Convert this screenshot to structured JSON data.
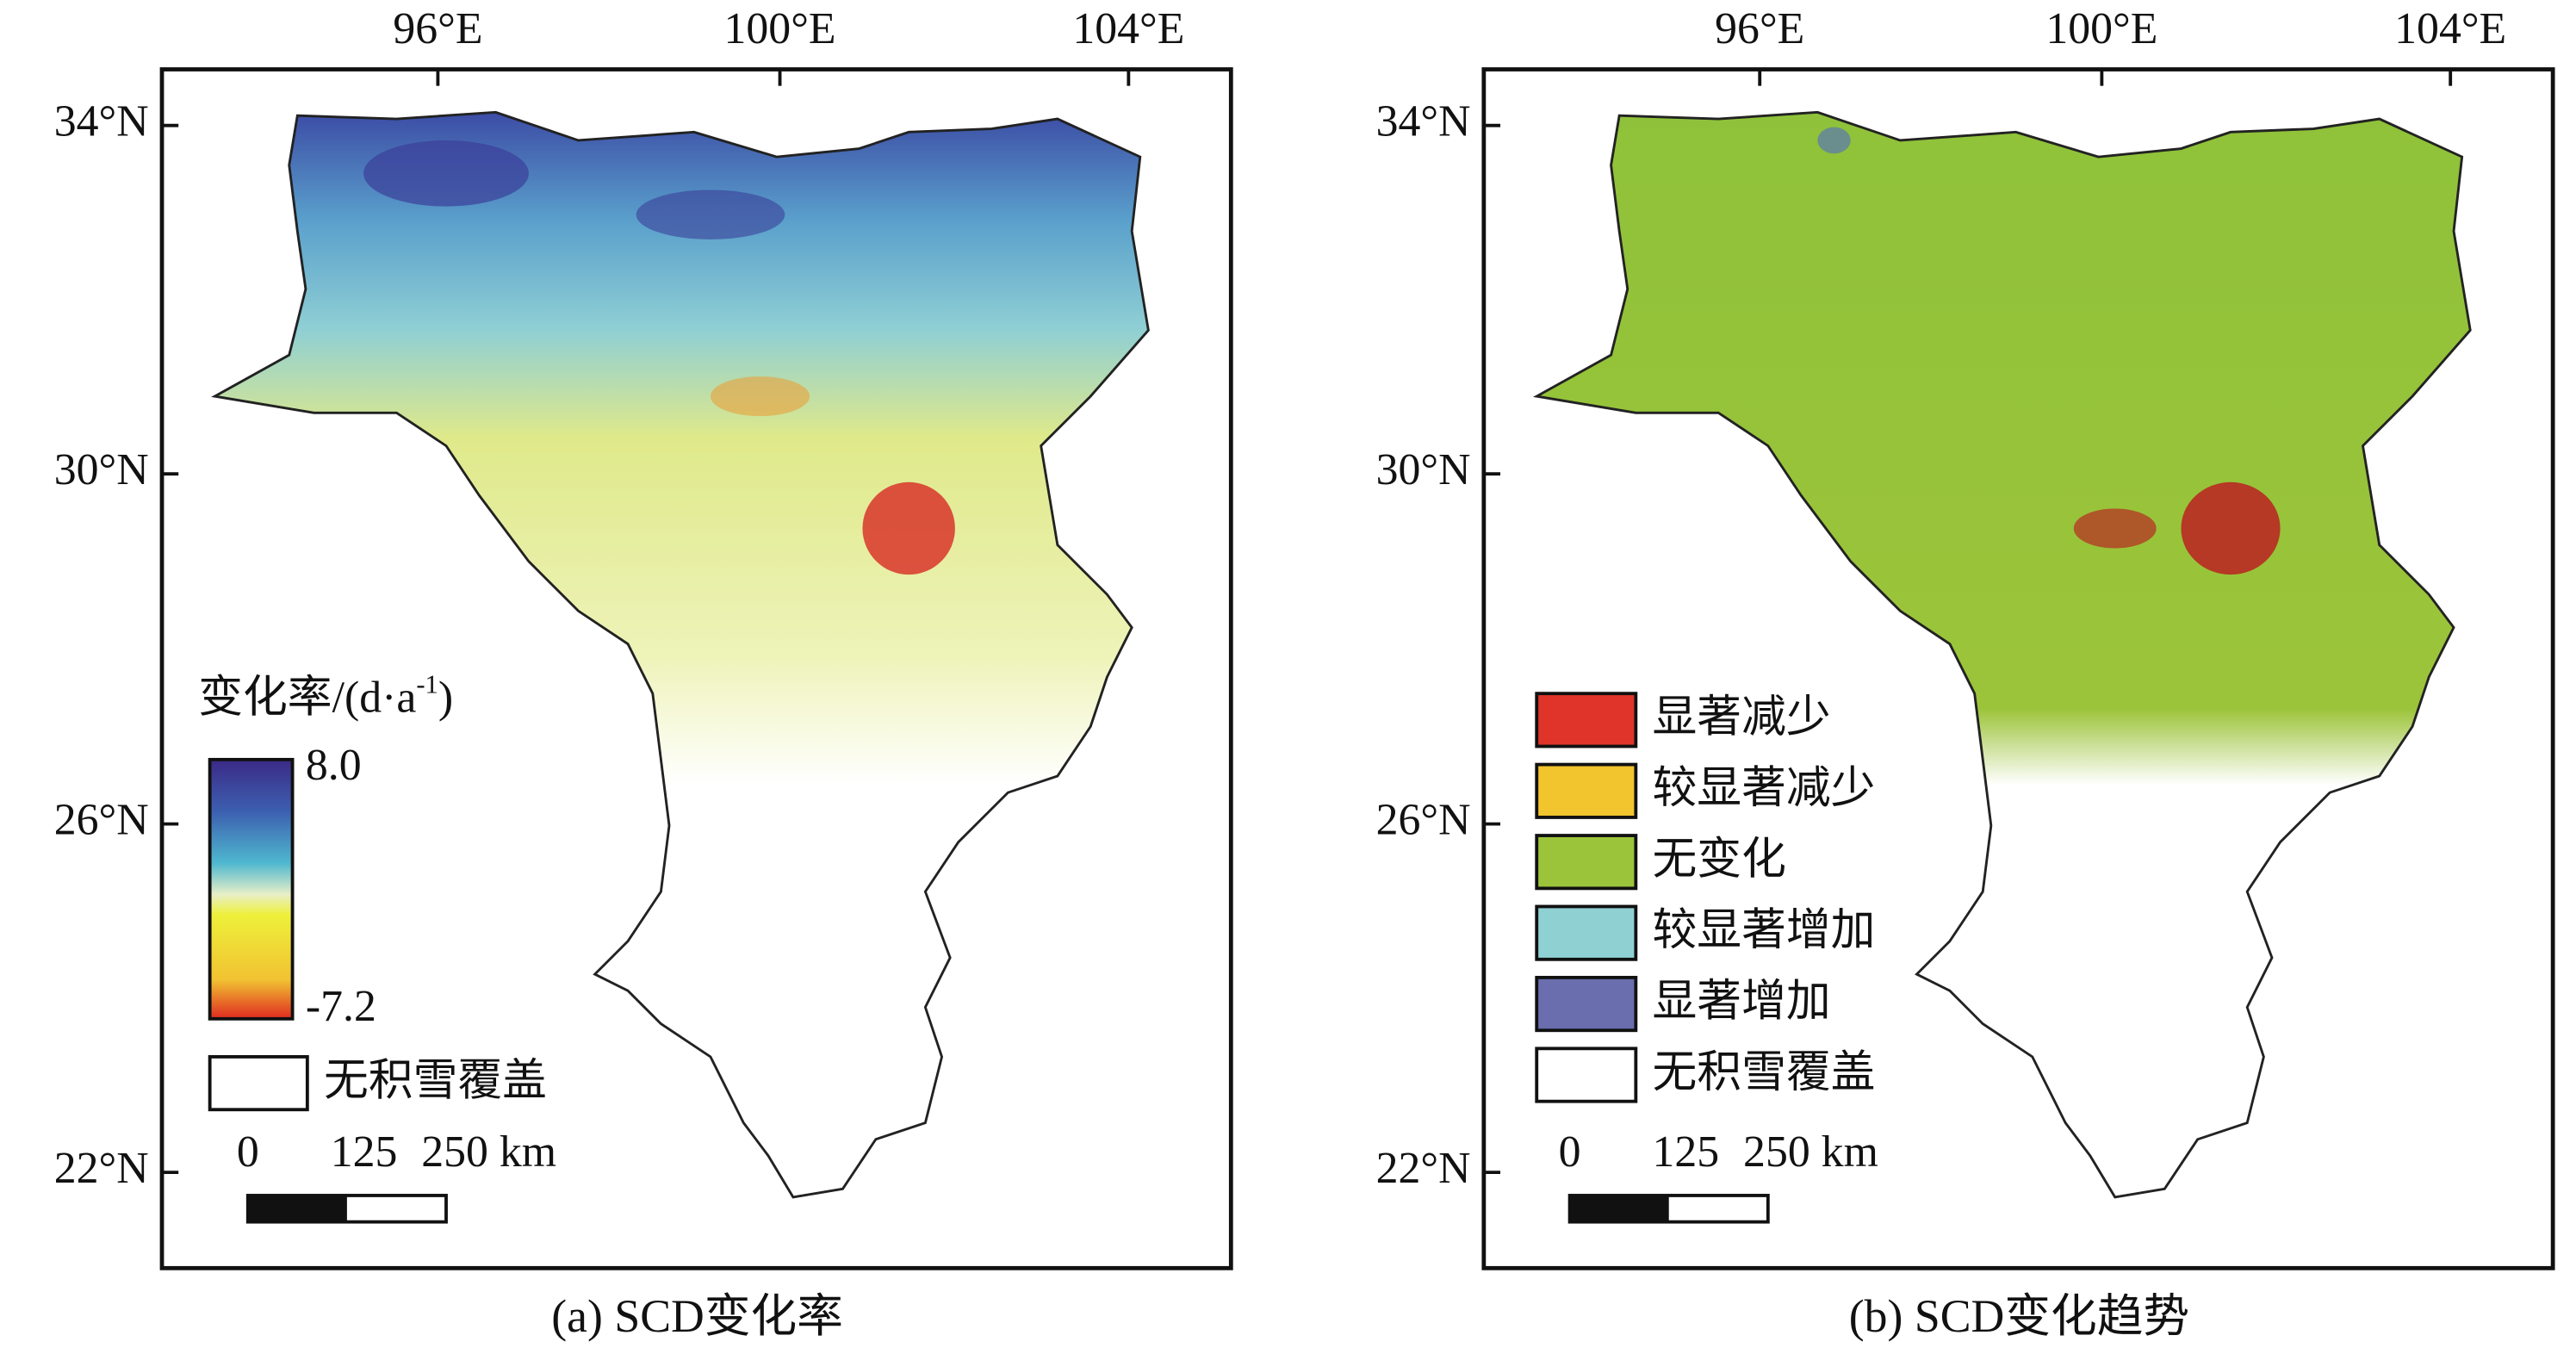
{
  "panels": [
    {
      "caption": "(a) SCD变化率",
      "lon_ticks": [
        "96°E",
        "100°E",
        "104°E"
      ],
      "lat_ticks": [
        "34°N",
        "30°N",
        "26°N",
        "22°N"
      ],
      "legend": {
        "title": "变化率/(d·a",
        "title_sup": "-1",
        "title_end": ")",
        "max": "8.0",
        "min": "-7.2",
        "no_snow": "无积雪覆盖"
      },
      "scale": [
        "0",
        "125",
        "250 km"
      ]
    },
    {
      "caption": "(b) SCD变化趋势",
      "lon_ticks": [
        "96°E",
        "100°E",
        "104°E"
      ],
      "lat_ticks": [
        "34°N",
        "30°N",
        "26°N",
        "22°N"
      ],
      "legend": {
        "items": [
          {
            "label": "显著减少",
            "color": "#e0342a"
          },
          {
            "label": "较显著减少",
            "color": "#f2c42e"
          },
          {
            "label": "无变化",
            "color": "#9cc43a"
          },
          {
            "label": "较显著增加",
            "color": "#8fd0d3"
          },
          {
            "label": "显著增加",
            "color": "#6a6dae"
          },
          {
            "label": "无积雪覆盖",
            "color": "#ffffff"
          }
        ]
      },
      "scale": [
        "0",
        "125",
        "250 km"
      ]
    }
  ]
}
